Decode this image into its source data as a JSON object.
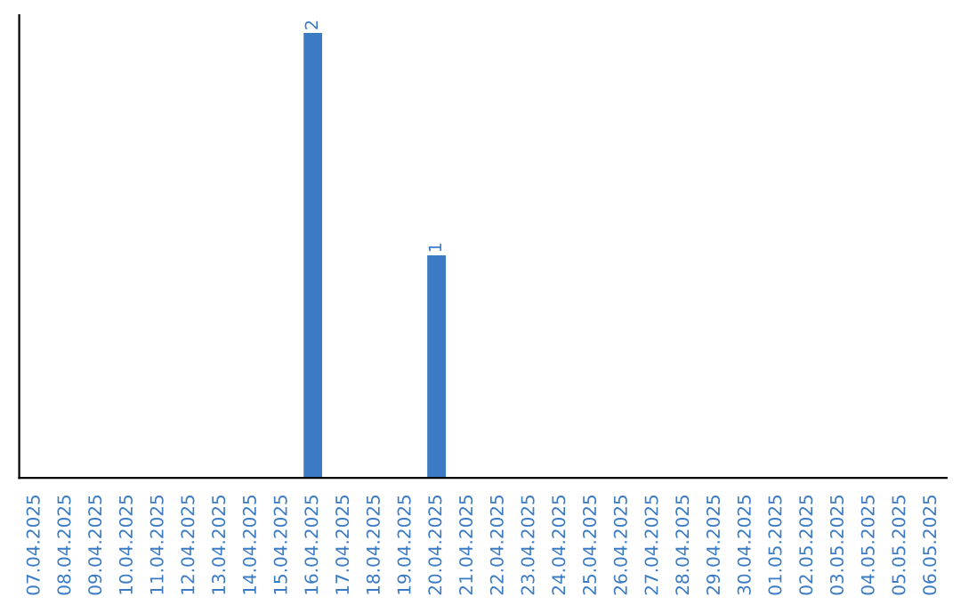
{
  "chart_data": {
    "type": "bar",
    "categories": [
      "07.04.2025",
      "08.04.2025",
      "09.04.2025",
      "10.04.2025",
      "11.04.2025",
      "12.04.2025",
      "13.04.2025",
      "14.04.2025",
      "15.04.2025",
      "16.04.2025",
      "17.04.2025",
      "18.04.2025",
      "19.04.2025",
      "20.04.2025",
      "21.04.2025",
      "22.04.2025",
      "23.04.2025",
      "24.04.2025",
      "25.04.2025",
      "26.04.2025",
      "27.04.2025",
      "28.04.2025",
      "29.04.2025",
      "30.04.2025",
      "01.05.2025",
      "02.05.2025",
      "03.05.2025",
      "04.05.2025",
      "05.05.2025",
      "06.05.2025"
    ],
    "values": [
      0,
      0,
      0,
      0,
      0,
      0,
      0,
      0,
      0,
      2,
      0,
      0,
      0,
      1,
      0,
      0,
      0,
      0,
      0,
      0,
      0,
      0,
      0,
      0,
      0,
      0,
      0,
      0,
      0,
      0
    ],
    "value_labels": [
      null,
      null,
      null,
      null,
      null,
      null,
      null,
      null,
      null,
      "2",
      null,
      null,
      null,
      "1",
      null,
      null,
      null,
      null,
      null,
      null,
      null,
      null,
      null,
      null,
      null,
      null,
      null,
      null,
      null,
      null
    ],
    "color": "#3b7bc4",
    "tick_labels": "x",
    "grid": false,
    "legend": false
  }
}
